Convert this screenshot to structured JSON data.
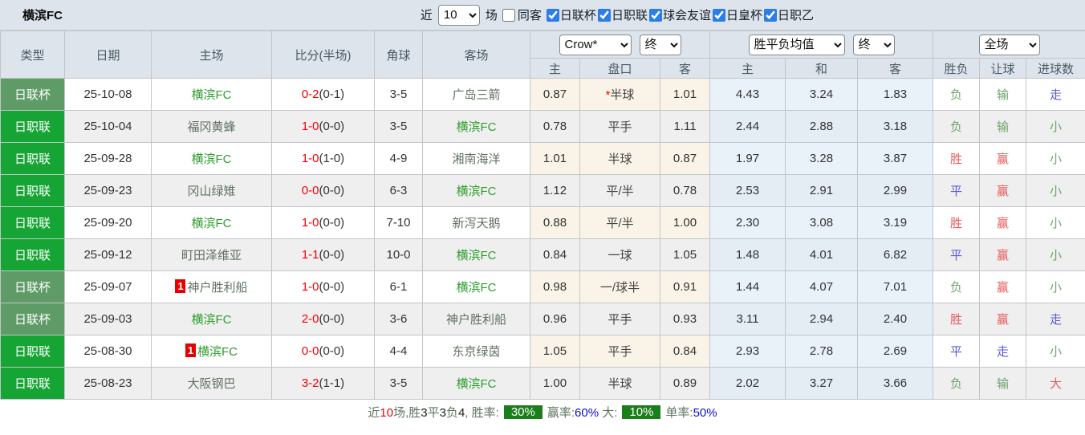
{
  "header": {
    "title": "横滨FC",
    "near_label": "近",
    "matches_count": "10",
    "matches_label": "场",
    "same_venue": {
      "label": "同客",
      "checked": false
    },
    "league_filters": [
      {
        "label": "日联杯",
        "checked": "true"
      },
      {
        "label": "日职联",
        "checked": "true"
      },
      {
        "label": "球会友谊",
        "checked": "true"
      },
      {
        "label": "日皇杯",
        "checked": "true"
      },
      {
        "label": "日职乙",
        "checked": "true"
      }
    ]
  },
  "table": {
    "main_headers": [
      "类型",
      "日期",
      "主场",
      "比分(半场)",
      "角球",
      "客场"
    ],
    "sub_headers": [
      "主",
      "盘口",
      "客",
      "主",
      "和",
      "客",
      "胜负",
      "让球",
      "进球数"
    ],
    "selects": {
      "bookmaker": "Crow*",
      "bookmaker_stage": "终",
      "avg": "胜平负均值",
      "avg_stage": "终",
      "scope": "全场"
    },
    "colors": {
      "cup_green": "#5e9b66",
      "league_green": "#16a434",
      "self_team_green": "#2f9d2f",
      "score_red": "#f40000",
      "win_red": "#e9595c",
      "draw_blue": "#5a5ae0",
      "lose_green": "#6da56d",
      "badge_green": "#1b7e1b"
    },
    "rows": [
      {
        "type": "日联杯",
        "variant": "cup",
        "date": "25-10-08",
        "home": {
          "name": "横滨FC",
          "self": true
        },
        "away": {
          "name": "广岛三箭",
          "self": false
        },
        "ft": "0-2",
        "ht": "(0-1)",
        "corner": "3-5",
        "ah_home": "0.87",
        "star": true,
        "line": "半球",
        "ah_away": "1.01",
        "eu_home": "4.43",
        "eu_draw": "3.24",
        "eu_away": "1.83",
        "wdl": {
          "t": "负",
          "c": "green"
        },
        "hr": {
          "t": "输",
          "c": "green"
        },
        "goal": {
          "t": "走",
          "c": "blue"
        }
      },
      {
        "type": "日职联",
        "variant": "league",
        "date": "25-10-04",
        "home": {
          "name": "福冈黄蜂",
          "self": false
        },
        "away": {
          "name": "横滨FC",
          "self": true
        },
        "ft": "1-0",
        "ht": "(0-0)",
        "corner": "3-5",
        "ah_home": "0.78",
        "star": false,
        "line": "平手",
        "ah_away": "1.11",
        "eu_home": "2.44",
        "eu_draw": "2.88",
        "eu_away": "3.18",
        "wdl": {
          "t": "负",
          "c": "green"
        },
        "hr": {
          "t": "输",
          "c": "green"
        },
        "goal": {
          "t": "小",
          "c": "green"
        }
      },
      {
        "type": "日职联",
        "variant": "league",
        "date": "25-09-28",
        "home": {
          "name": "横滨FC",
          "self": true
        },
        "away": {
          "name": "湘南海洋",
          "self": false
        },
        "ft": "1-0",
        "ht": "(1-0)",
        "corner": "4-9",
        "ah_home": "1.01",
        "star": false,
        "line": "半球",
        "ah_away": "0.87",
        "eu_home": "1.97",
        "eu_draw": "3.28",
        "eu_away": "3.87",
        "wdl": {
          "t": "胜",
          "c": "red"
        },
        "hr": {
          "t": "赢",
          "c": "red"
        },
        "goal": {
          "t": "小",
          "c": "green"
        }
      },
      {
        "type": "日职联",
        "variant": "league",
        "date": "25-09-23",
        "home": {
          "name": "冈山绿雉",
          "self": false
        },
        "away": {
          "name": "横滨FC",
          "self": true
        },
        "ft": "0-0",
        "ht": "(0-0)",
        "corner": "6-3",
        "ah_home": "1.12",
        "star": false,
        "line": "平/半",
        "ah_away": "0.78",
        "eu_home": "2.53",
        "eu_draw": "2.91",
        "eu_away": "2.99",
        "wdl": {
          "t": "平",
          "c": "blue"
        },
        "hr": {
          "t": "赢",
          "c": "red"
        },
        "goal": {
          "t": "小",
          "c": "green"
        }
      },
      {
        "type": "日职联",
        "variant": "league",
        "date": "25-09-20",
        "home": {
          "name": "横滨FC",
          "self": true
        },
        "away": {
          "name": "新泻天鹅",
          "self": false
        },
        "ft": "1-0",
        "ht": "(0-0)",
        "corner": "7-10",
        "ah_home": "0.88",
        "star": false,
        "line": "平/半",
        "ah_away": "1.00",
        "eu_home": "2.30",
        "eu_draw": "3.08",
        "eu_away": "3.19",
        "wdl": {
          "t": "胜",
          "c": "red"
        },
        "hr": {
          "t": "赢",
          "c": "red"
        },
        "goal": {
          "t": "小",
          "c": "green"
        }
      },
      {
        "type": "日职联",
        "variant": "league",
        "date": "25-09-12",
        "home": {
          "name": "町田泽维亚",
          "self": false
        },
        "away": {
          "name": "横滨FC",
          "self": true
        },
        "ft": "1-1",
        "ht": "(0-0)",
        "corner": "10-0",
        "ah_home": "0.84",
        "star": false,
        "line": "一球",
        "ah_away": "1.05",
        "eu_home": "1.48",
        "eu_draw": "4.01",
        "eu_away": "6.82",
        "wdl": {
          "t": "平",
          "c": "blue"
        },
        "hr": {
          "t": "赢",
          "c": "red"
        },
        "goal": {
          "t": "小",
          "c": "green"
        }
      },
      {
        "type": "日联杯",
        "variant": "cup",
        "date": "25-09-07",
        "home": {
          "name": "神户胜利船",
          "self": false,
          "badge": "1"
        },
        "away": {
          "name": "横滨FC",
          "self": true
        },
        "ft": "1-0",
        "ht": "(0-0)",
        "corner": "6-1",
        "ah_home": "0.98",
        "star": false,
        "line": "一/球半",
        "ah_away": "0.91",
        "eu_home": "1.44",
        "eu_draw": "4.07",
        "eu_away": "7.01",
        "wdl": {
          "t": "负",
          "c": "green"
        },
        "hr": {
          "t": "赢",
          "c": "red"
        },
        "goal": {
          "t": "小",
          "c": "green"
        }
      },
      {
        "type": "日联杯",
        "variant": "cup",
        "date": "25-09-03",
        "home": {
          "name": "横滨FC",
          "self": true
        },
        "away": {
          "name": "神户胜利船",
          "self": false
        },
        "ft": "2-0",
        "ht": "(0-0)",
        "corner": "3-6",
        "ah_home": "0.96",
        "star": false,
        "line": "平手",
        "ah_away": "0.93",
        "eu_home": "3.11",
        "eu_draw": "2.94",
        "eu_away": "2.40",
        "wdl": {
          "t": "胜",
          "c": "red"
        },
        "hr": {
          "t": "赢",
          "c": "red"
        },
        "goal": {
          "t": "走",
          "c": "blue"
        }
      },
      {
        "type": "日职联",
        "variant": "league",
        "date": "25-08-30",
        "home": {
          "name": "横滨FC",
          "self": true,
          "badge": "1"
        },
        "away": {
          "name": "东京绿茵",
          "self": false
        },
        "ft": "0-0",
        "ht": "(0-0)",
        "corner": "4-4",
        "ah_home": "1.05",
        "star": false,
        "line": "平手",
        "ah_away": "0.84",
        "eu_home": "2.93",
        "eu_draw": "2.78",
        "eu_away": "2.69",
        "wdl": {
          "t": "平",
          "c": "blue"
        },
        "hr": {
          "t": "走",
          "c": "blue"
        },
        "goal": {
          "t": "小",
          "c": "green"
        }
      },
      {
        "type": "日职联",
        "variant": "league",
        "date": "25-08-23",
        "home": {
          "name": "大阪钢巴",
          "self": false
        },
        "away": {
          "name": "横滨FC",
          "self": true
        },
        "ft": "3-2",
        "ht": "(1-1)",
        "corner": "3-5",
        "ah_home": "1.00",
        "star": false,
        "line": "半球",
        "ah_away": "0.89",
        "eu_home": "2.02",
        "eu_draw": "3.27",
        "eu_away": "3.66",
        "wdl": {
          "t": "负",
          "c": "green"
        },
        "hr": {
          "t": "输",
          "c": "green"
        },
        "goal": {
          "t": "大",
          "c": "red"
        }
      }
    ]
  },
  "footer": {
    "segments": [
      {
        "text": "近",
        "style": "label"
      },
      {
        "text": "10",
        "style": "red"
      },
      {
        "text": "场,胜",
        "style": "label"
      },
      {
        "text": "3",
        "style": "dark"
      },
      {
        "text": "平",
        "style": "label"
      },
      {
        "text": "3",
        "style": "dark"
      },
      {
        "text": "负",
        "style": "label"
      },
      {
        "text": "4",
        "style": "dark"
      },
      {
        "text": ", 胜率:",
        "style": "label"
      },
      {
        "text": "30%",
        "style": "badge"
      },
      {
        "text": "赢率:",
        "style": "label"
      },
      {
        "text": "60%",
        "style": "blue"
      },
      {
        "text": " 大:",
        "style": "label"
      },
      {
        "text": "10%",
        "style": "badge"
      },
      {
        "text": "单率:",
        "style": "label"
      },
      {
        "text": "50%",
        "style": "blue"
      }
    ]
  }
}
